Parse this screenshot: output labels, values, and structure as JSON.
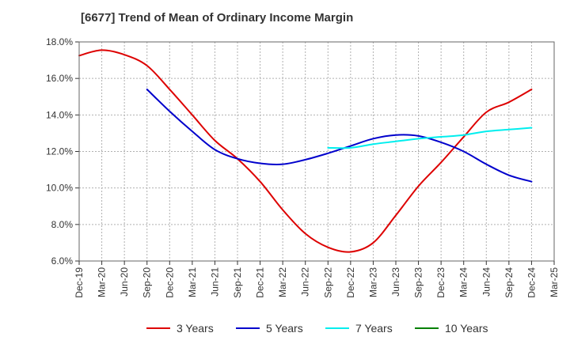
{
  "chart_data": {
    "type": "line",
    "title": "[6677]  Trend of Mean of Ordinary Income Margin",
    "xlabel": "",
    "ylabel": "",
    "categories": [
      "Dec-19",
      "Mar-20",
      "Jun-20",
      "Sep-20",
      "Dec-20",
      "Mar-21",
      "Jun-21",
      "Sep-21",
      "Dec-21",
      "Mar-22",
      "Jun-22",
      "Sep-22",
      "Dec-22",
      "Mar-23",
      "Jun-23",
      "Sep-23",
      "Dec-23",
      "Mar-24",
      "Jun-24",
      "Sep-24",
      "Dec-24",
      "Mar-25"
    ],
    "y_ticks": [
      "6.0%",
      "8.0%",
      "10.0%",
      "12.0%",
      "14.0%",
      "16.0%",
      "18.0%"
    ],
    "ylim": [
      6,
      18
    ],
    "grid": true,
    "legend_position": "bottom",
    "series": [
      {
        "name": "3 Years",
        "color": "#dd0000",
        "values": [
          17.25,
          17.55,
          17.3,
          16.7,
          15.4,
          14.0,
          12.6,
          11.6,
          10.35,
          8.8,
          7.5,
          6.75,
          6.5,
          7.0,
          8.5,
          10.1,
          11.4,
          12.8,
          14.15,
          14.7,
          15.4,
          null
        ]
      },
      {
        "name": "5 Years",
        "color": "#0000cc",
        "values": [
          null,
          null,
          null,
          15.4,
          14.2,
          13.1,
          12.1,
          11.6,
          11.35,
          11.3,
          11.55,
          11.9,
          12.3,
          12.7,
          12.9,
          12.85,
          12.5,
          12.0,
          11.3,
          10.7,
          10.35,
          null
        ]
      },
      {
        "name": "7 Years",
        "color": "#00eeee",
        "values": [
          null,
          null,
          null,
          null,
          null,
          null,
          null,
          null,
          null,
          null,
          null,
          12.2,
          12.2,
          12.4,
          12.55,
          12.7,
          12.8,
          12.9,
          13.1,
          13.2,
          13.3,
          null
        ]
      },
      {
        "name": "10 Years",
        "color": "#008000",
        "values": [
          null,
          null,
          null,
          null,
          null,
          null,
          null,
          null,
          null,
          null,
          null,
          null,
          null,
          null,
          null,
          null,
          null,
          null,
          null,
          null,
          null,
          null
        ]
      }
    ]
  }
}
